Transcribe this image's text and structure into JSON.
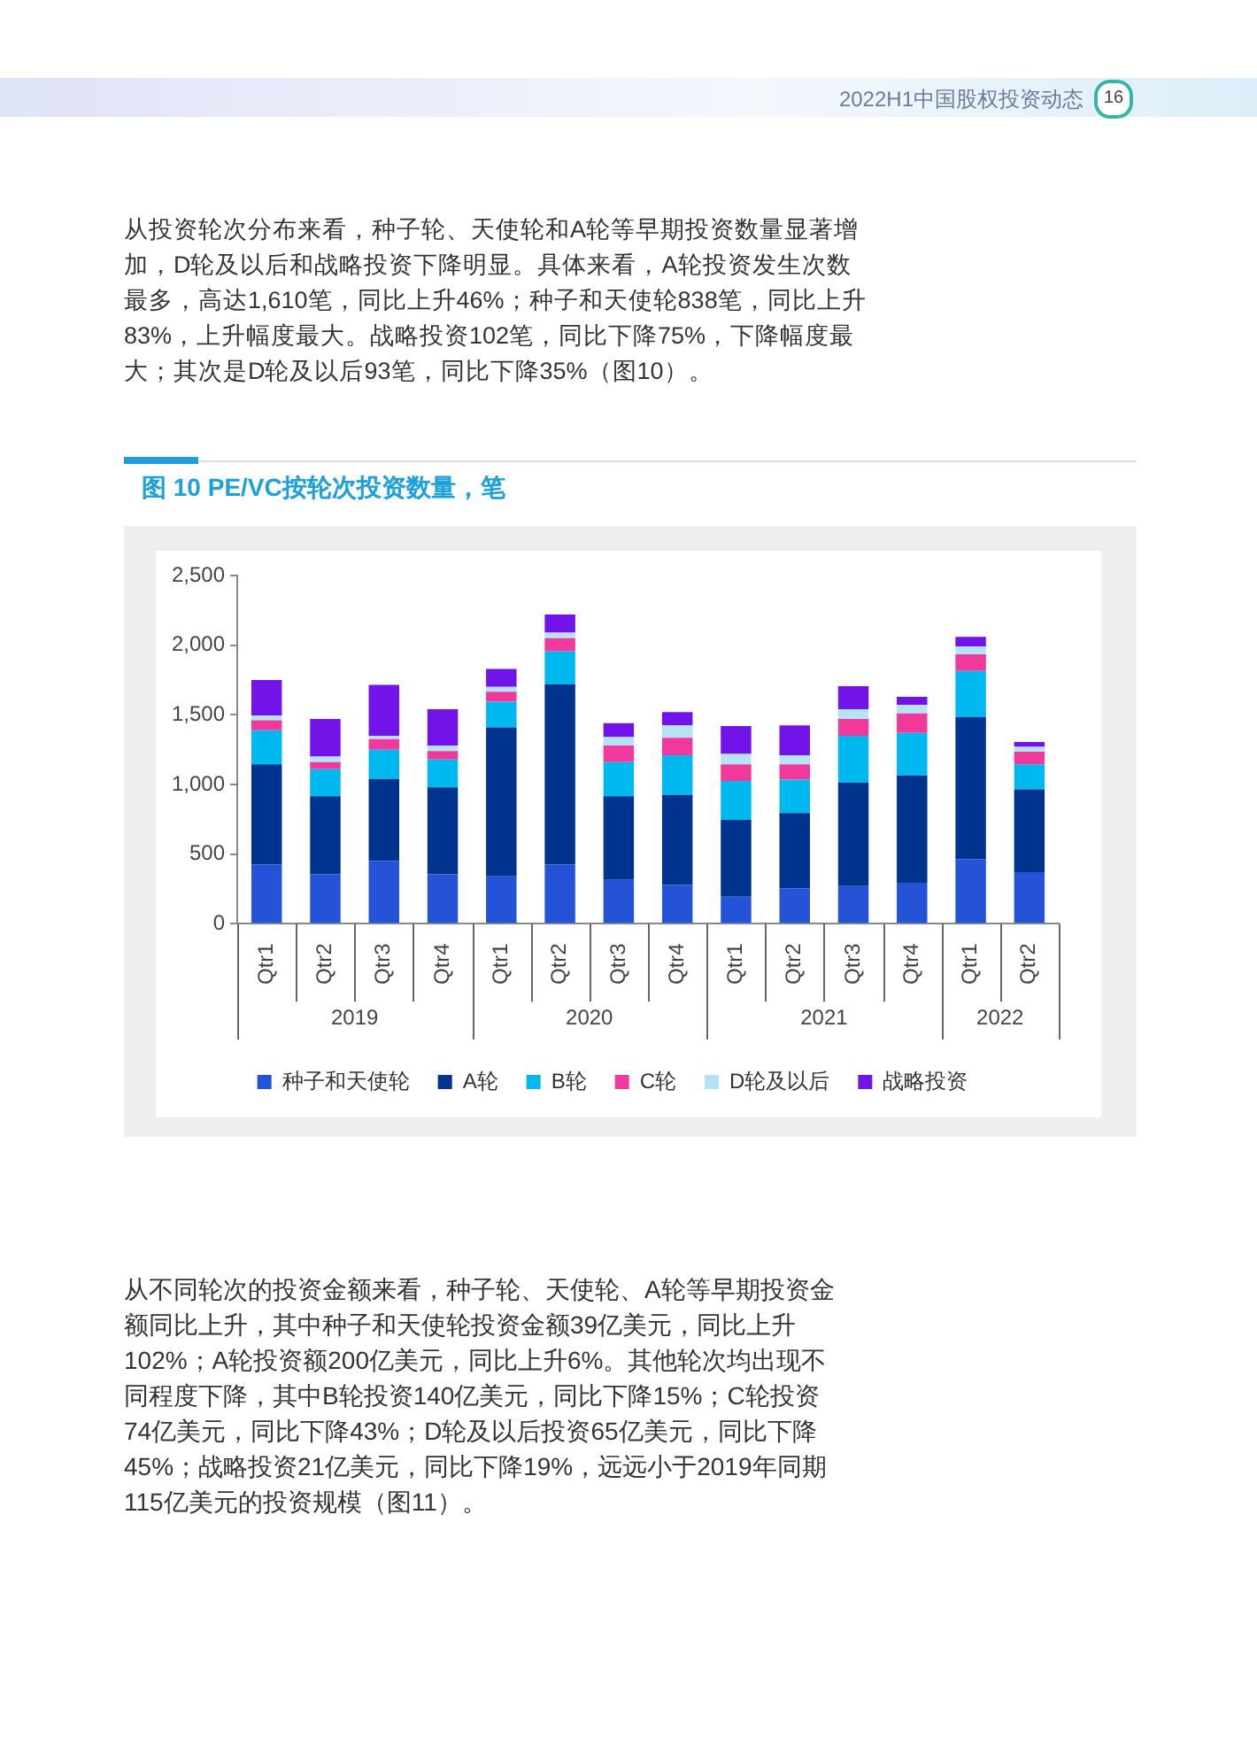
{
  "chart_data": {
    "type": "bar",
    "title": "图 10  PE/VC按轮次投资数量，笔",
    "categories": [
      "Qtr1",
      "Qtr2",
      "Qtr3",
      "Qtr4",
      "Qtr1",
      "Qtr2",
      "Qtr3",
      "Qtr4",
      "Qtr1",
      "Qtr2",
      "Qtr3",
      "Qtr4",
      "Qtr1",
      "Qtr2"
    ],
    "series": [
      {
        "name": "种子和天使轮",
        "color": "#2553d8",
        "values": [
          425,
          355,
          450,
          355,
          340,
          425,
          315,
          280,
          195,
          255,
          270,
          295,
          465,
          370
        ]
      },
      {
        "name": "A轮",
        "color": "#00338d",
        "values": [
          720,
          560,
          590,
          625,
          1070,
          1295,
          600,
          645,
          550,
          540,
          745,
          770,
          1020,
          595
        ]
      },
      {
        "name": "B轮",
        "color": "#00b8f0",
        "values": [
          245,
          195,
          210,
          200,
          185,
          235,
          245,
          285,
          280,
          240,
          335,
          305,
          330,
          180
        ]
      },
      {
        "name": "C轮",
        "color": "#f0399a",
        "values": [
          70,
          50,
          75,
          60,
          70,
          95,
          120,
          125,
          120,
          110,
          120,
          140,
          120,
          90
        ]
      },
      {
        "name": "D轮及以后",
        "color": "#b5e3f5",
        "values": [
          35,
          40,
          25,
          40,
          35,
          40,
          60,
          90,
          75,
          65,
          70,
          60,
          55,
          35
        ]
      },
      {
        "name": "战略投资",
        "color": "#7213ea",
        "values": [
          255,
          270,
          365,
          260,
          130,
          130,
          100,
          95,
          200,
          215,
          165,
          60,
          70,
          35
        ]
      }
    ],
    "stacked": true,
    "ylim": [
      0,
      2500
    ],
    "yticks": [
      {
        "value": 0,
        "label": "0"
      },
      {
        "value": 500,
        "label": "500"
      },
      {
        "value": 1000,
        "label": "1,000"
      },
      {
        "value": 1500,
        "label": "1,500"
      },
      {
        "value": 2000,
        "label": "2,000"
      },
      {
        "value": 2500,
        "label": "2,500"
      }
    ],
    "legend": "bottom",
    "annotations": [
      "2022H1中国股权投资动态",
      "16",
      "从投资轮次分布来看，种子轮、天使轮和A轮等早期投资数量显著增加，D轮及以后和战略投资下降明显。具体来看，A轮投资发生次数最多，高达1,610笔，同比上升46%；种子和天使轮838笔，同比上升83%，上升幅度最大。战略投资102笔，同比下降75%，下降幅度最大；其次是D轮及以后93笔，同比下降35%（图10）。",
      "从不同轮次的投资金额来看，种子轮、天使轮、A轮等早期投资金额同比上升，其中种子和天使轮投资金额39亿美元，同比上升102%；A轮投资额200亿美元，同比上升6%。其他轮次均出现不同程度下降，其中B轮投资140亿美元，同比下降15%；C轮投资74亿美元，同比下降43%；D轮及以后投资65亿美元，同比下降45%；战略投资21亿美元，同比下降19%，远远小于2019年同期115亿美元的投资规模（图11）。",
      "2019",
      "2020",
      "2021",
      "2022"
    ]
  }
}
